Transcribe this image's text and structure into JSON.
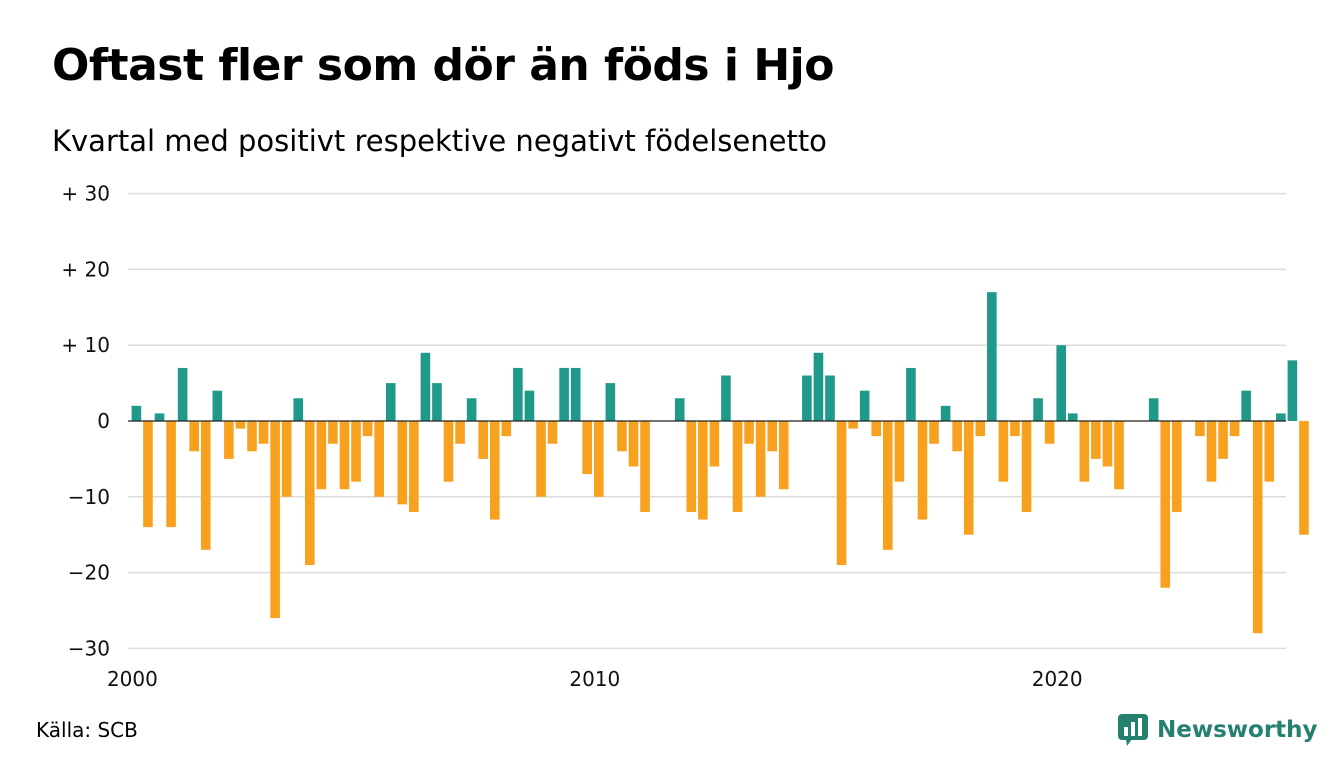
{
  "title": "Oftast fler som dör än föds i Hjo",
  "subtitle": "Kvartal med positivt respektive negativt födelsenetto",
  "source": "Källa: SCB",
  "brand": "Newsworthy",
  "colors": {
    "positive": "#1f9a8a",
    "negative": "#f7a11f",
    "grid": "#dddddd",
    "brand": "#26806f"
  },
  "chart_data": {
    "type": "bar",
    "x_unit": "quarter",
    "start_year": 2000,
    "y_ticks": [
      30,
      20,
      10,
      0,
      -10,
      -20,
      -30
    ],
    "y_tick_labels": [
      "+ 30",
      "+ 20",
      "+ 10",
      "0",
      "−10",
      "−20",
      "−30"
    ],
    "x_ticks": [
      2000,
      2010,
      2020
    ],
    "x_tick_labels": [
      "2000",
      "2010",
      "2020"
    ],
    "ylim": [
      -30,
      30
    ],
    "grid": true,
    "values": [
      2,
      -14,
      1,
      -14,
      7,
      -4,
      -17,
      4,
      -5,
      -1,
      -4,
      -3,
      -26,
      -10,
      3,
      -19,
      -9,
      -3,
      -9,
      -8,
      -2,
      -10,
      5,
      -11,
      -12,
      9,
      5,
      -8,
      -3,
      3,
      -5,
      -13,
      -2,
      7,
      4,
      -10,
      -3,
      7,
      7,
      -7,
      -10,
      5,
      -4,
      -6,
      -12,
      0,
      0,
      3,
      -12,
      -13,
      -6,
      6,
      -12,
      -3,
      -10,
      -4,
      -9,
      0,
      6,
      9,
      6,
      -19,
      -1,
      4,
      -2,
      -17,
      -8,
      7,
      -13,
      -3,
      2,
      -4,
      -15,
      -2,
      17,
      -8,
      -2,
      -12,
      3,
      -3,
      10,
      1,
      -8,
      -5,
      -6,
      -9,
      0,
      0,
      3,
      -22,
      -12,
      0,
      -2,
      -8,
      -5,
      -2,
      4,
      -28,
      -8,
      1,
      8,
      -15
    ]
  }
}
